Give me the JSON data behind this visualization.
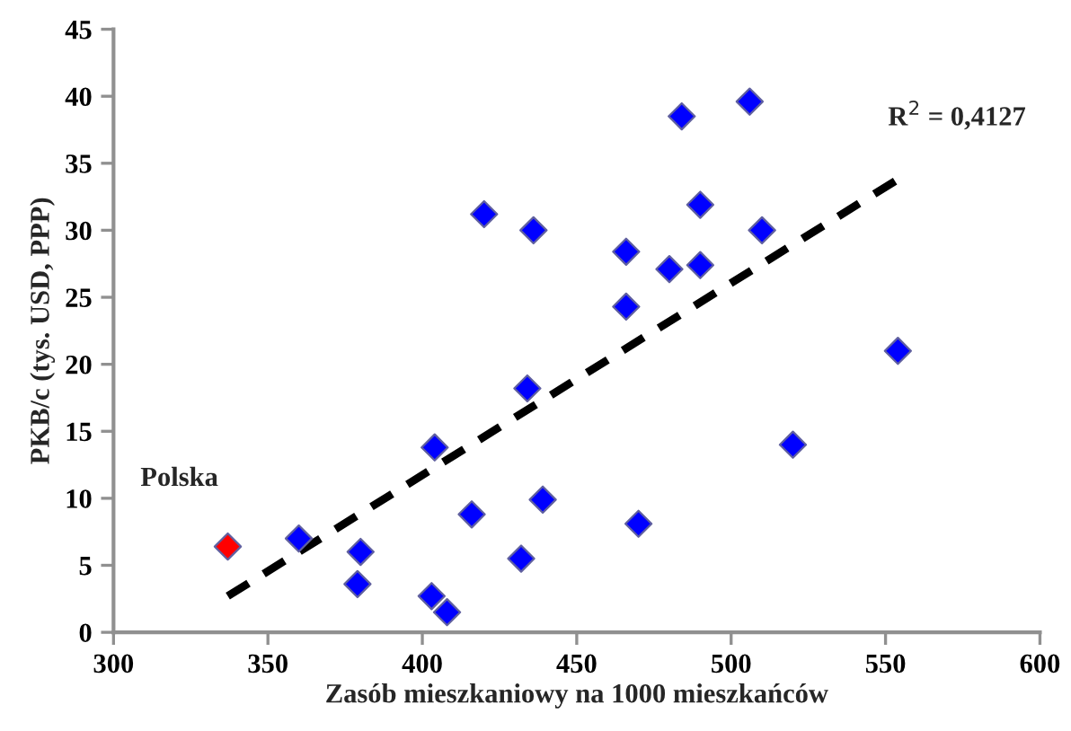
{
  "chart_data": {
    "type": "scatter",
    "xlabel": "Zasób mieszkaniowy na 1000 mieszkańców",
    "ylabel": "PKB/c (tys. USD, PPP)",
    "xlim": [
      300,
      600
    ],
    "xticks": [
      300,
      350,
      400,
      450,
      500,
      550,
      600
    ],
    "ylim": [
      0,
      45
    ],
    "yticks": [
      0,
      5,
      10,
      15,
      20,
      25,
      30,
      35,
      40,
      45
    ],
    "grid": false,
    "legend": false,
    "marker": "diamond",
    "series": [
      {
        "x": [
          337,
          360,
          379,
          380,
          403,
          404,
          408,
          416,
          420,
          432,
          434,
          436,
          439,
          466,
          466,
          470,
          480,
          484,
          490,
          490,
          506,
          510,
          520,
          554
        ],
        "values": [
          6.4,
          7.0,
          3.6,
          6.0,
          2.7,
          13.8,
          1.5,
          8.8,
          31.2,
          5.5,
          18.2,
          30.0,
          9.9,
          24.3,
          28.4,
          8.1,
          27.1,
          38.5,
          31.9,
          27.4,
          39.6,
          30.0,
          14.0,
          21.0
        ],
        "colors": [
          "#ff0000",
          "#0000ff",
          "#0000ff",
          "#0000ff",
          "#0000ff",
          "#0000ff",
          "#0000ff",
          "#0000ff",
          "#0000ff",
          "#0000ff",
          "#0000ff",
          "#0000ff",
          "#0000ff",
          "#0000ff",
          "#0000ff",
          "#0000ff",
          "#0000ff",
          "#0000ff",
          "#0000ff",
          "#0000ff",
          "#0000ff",
          "#0000ff",
          "#0000ff",
          "#0000ff"
        ]
      },
      {
        "type": "line",
        "x": [
          337,
          554
        ],
        "values": [
          2.7,
          33.8
        ],
        "color": "#000000",
        "line_style": "dashed",
        "marker": "none"
      }
    ],
    "annotations": [
      {
        "text": "Polska",
        "x": 337,
        "y": 6.4
      },
      "R$^{2}$ = 0,4127"
    ]
  }
}
